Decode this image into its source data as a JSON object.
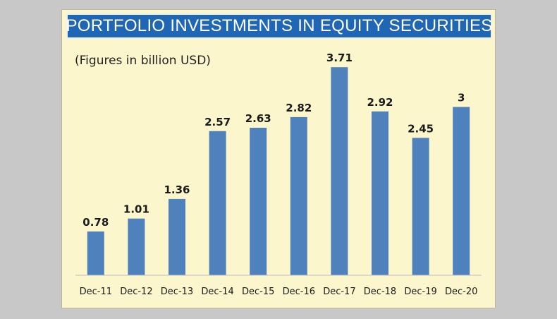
{
  "chart_data": {
    "type": "bar",
    "title": "PORTFOLIO INVESTMENTS IN EQUITY SECURITIES",
    "subtitle": "(Figures in billion USD)",
    "categories": [
      "Dec-11",
      "Dec-12",
      "Dec-13",
      "Dec-14",
      "Dec-15",
      "Dec-16",
      "Dec-17",
      "Dec-18",
      "Dec-19",
      "Dec-20"
    ],
    "values": [
      0.78,
      1.01,
      1.36,
      2.57,
      2.63,
      2.82,
      3.71,
      2.92,
      2.45,
      3
    ],
    "value_labels": [
      "0.78",
      "1.01",
      "1.36",
      "2.57",
      "2.63",
      "2.82",
      "3.71",
      "2.92",
      "2.45",
      "3"
    ],
    "ylim": [
      0,
      3.8
    ],
    "grid": false,
    "legend": "none",
    "colors": {
      "bar": "#4f81bd",
      "title_band": "#1f66b5",
      "panel": "#fbf6cc",
      "backdrop": "#c8c8c8"
    }
  }
}
